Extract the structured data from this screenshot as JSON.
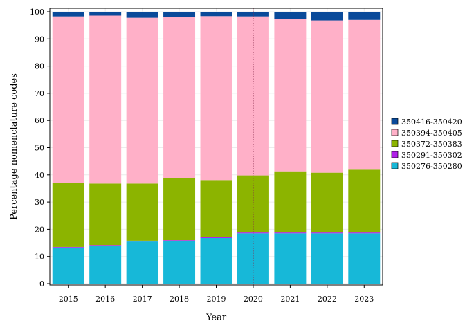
{
  "chart_data": {
    "type": "bar",
    "stacked": true,
    "xlabel": "Year",
    "ylabel": "Percentage nomenclature codes",
    "categories": [
      "2015",
      "2016",
      "2017",
      "2018",
      "2019",
      "2020",
      "2021",
      "2022",
      "2023"
    ],
    "ylim": [
      0,
      100
    ],
    "yticks": [
      0,
      10,
      20,
      30,
      40,
      50,
      60,
      70,
      80,
      90,
      100
    ],
    "grid": true,
    "legend_position": "right",
    "reference_line": {
      "x": "2020",
      "style": "dotted"
    },
    "series": [
      {
        "name": "350276-350280",
        "color": "#17b8d8",
        "values": [
          13.3,
          14.0,
          15.5,
          15.8,
          16.8,
          18.5,
          18.5,
          18.5,
          18.5
        ]
      },
      {
        "name": "350291-350302",
        "color": "#b020e8",
        "values": [
          0.2,
          0.2,
          0.3,
          0.2,
          0.3,
          0.3,
          0.3,
          0.3,
          0.3
        ]
      },
      {
        "name": "350372-350383",
        "color": "#8cb400",
        "values": [
          23.6,
          22.6,
          21.0,
          22.8,
          21.0,
          21.0,
          22.5,
          22.0,
          23.1
        ]
      },
      {
        "name": "350394-350405",
        "color": "#ffb0c8",
        "values": [
          61.2,
          61.8,
          61.0,
          59.2,
          60.3,
          58.5,
          55.9,
          56.0,
          55.1
        ]
      },
      {
        "name": "350416-350420",
        "color": "#0a4a9a",
        "values": [
          1.7,
          1.4,
          2.2,
          2.0,
          1.6,
          1.7,
          2.8,
          3.2,
          3.0
        ]
      }
    ],
    "legend_order": [
      "350416-350420",
      "350394-350405",
      "350372-350383",
      "350291-350302",
      "350276-350280"
    ]
  }
}
